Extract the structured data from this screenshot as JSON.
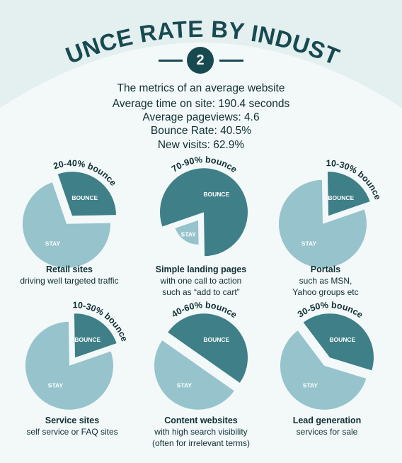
{
  "title": "BOUNCE RATE BY INDUSTRY",
  "badge_number": "2",
  "metrics": {
    "heading": "The metrics of an average website",
    "time_on_site": "Average time on site: 190.4 seconds",
    "pageviews": "Average pageviews: 4.6",
    "bounce_rate": "Bounce Rate: 40.5%",
    "new_visits": "New visits: 62.9%"
  },
  "colors": {
    "bounce": "#3e7f88",
    "stay": "#96c3cc",
    "text_dark": "#0f2f33",
    "accent": "#174a50"
  },
  "chart_data": [
    {
      "type": "pie",
      "range_label": "20-40% bounce",
      "bounce_fraction": 0.3,
      "slices": [
        {
          "label": "BOUNCE"
        },
        {
          "label": "STAY"
        }
      ],
      "name": "Retail sites",
      "desc": [
        "driving well targeted traffic"
      ]
    },
    {
      "type": "pie",
      "range_label": "70-90% bounce",
      "bounce_fraction": 0.8,
      "slices": [
        {
          "label": "BOUNCE"
        },
        {
          "label": "STAY"
        }
      ],
      "name": "Simple landing pages",
      "desc": [
        "with one call to action",
        "such as “add to cart”"
      ]
    },
    {
      "type": "pie",
      "range_label": "10-30% bounce",
      "bounce_fraction": 0.2,
      "slices": [
        {
          "label": "BOUNCE"
        },
        {
          "label": "STAY"
        }
      ],
      "name": "Portals",
      "desc": [
        "such as MSN,",
        "Yahoo groups etc"
      ]
    },
    {
      "type": "pie",
      "range_label": "10-30% bounce",
      "bounce_fraction": 0.2,
      "slices": [
        {
          "label": "BOUNCE"
        },
        {
          "label": "STAY"
        }
      ],
      "name": "Service sites",
      "desc": [
        "self service or FAQ sites"
      ]
    },
    {
      "type": "pie",
      "range_label": "40-60% bounce",
      "bounce_fraction": 0.5,
      "slices": [
        {
          "label": "BOUNCE"
        },
        {
          "label": "STAY"
        }
      ],
      "name": "Content websites",
      "desc": [
        "with high search visibility",
        "(often for irrelevant terms)"
      ]
    },
    {
      "type": "pie",
      "range_label": "30-50% bounce",
      "bounce_fraction": 0.4,
      "slices": [
        {
          "label": "BOUNCE"
        },
        {
          "label": "STAY"
        }
      ],
      "name": "Lead generation",
      "desc": [
        "services for sale"
      ]
    }
  ]
}
